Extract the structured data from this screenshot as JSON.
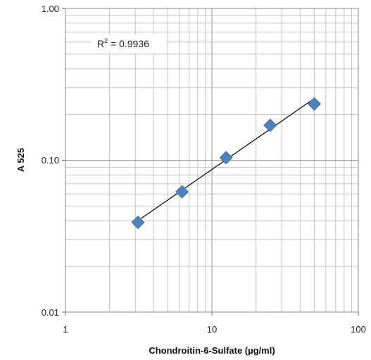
{
  "chart_data": {
    "type": "scatter",
    "title": "",
    "xlabel": "Chondroitin-6-Sulfate (µg/ml)",
    "ylabel": "A 525",
    "x_scale": "log",
    "y_scale": "log",
    "xlim": [
      1,
      100
    ],
    "ylim": [
      0.01,
      1
    ],
    "x_tick_labels": [
      "1",
      "10",
      "100"
    ],
    "y_tick_labels": [
      "0.01",
      "0.10",
      "1.00"
    ],
    "grid": true,
    "legend": "none",
    "series": [
      {
        "x": [
          3.125,
          6.25,
          12.5,
          25,
          50
        ],
        "y": [
          0.039,
          0.062,
          0.104,
          0.17,
          0.235
        ],
        "marker": "diamond",
        "color": "#4f81bd"
      }
    ],
    "trendline": {
      "type": "power",
      "x_range": [
        3.125,
        50
      ],
      "y_range": [
        0.04,
        0.255
      ],
      "color": "#000000"
    },
    "annotations": [
      {
        "prefix": "R",
        "superscript": "2",
        "text": " = 0.9936"
      }
    ]
  }
}
